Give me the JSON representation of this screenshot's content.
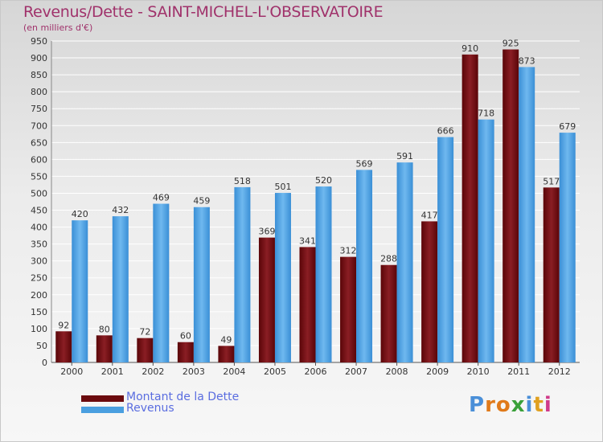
{
  "header": {
    "title": "Revenus/Dette - SAINT-MICHEL-L'OBSERVATOIRE",
    "subtitle": "(en milliers d'€)"
  },
  "legend": [
    {
      "label": "Montant de la Dette",
      "color": "#6b0a0e"
    },
    {
      "label": "Revenus",
      "color": "#4a9fe0"
    }
  ],
  "logo": {
    "text": "Proxiti",
    "letter_colors": [
      "#4a8fd8",
      "#e07a1a",
      "#e07a1a",
      "#3aa03a",
      "#4a8fd8",
      "#e0a020",
      "#d03a8a"
    ]
  },
  "chart_data": {
    "type": "bar",
    "title": "Revenus/Dette - SAINT-MICHEL-L'OBSERVATOIRE",
    "subtitle": "(en milliers d'€)",
    "categories": [
      "2000",
      "2001",
      "2002",
      "2003",
      "2004",
      "2005",
      "2006",
      "2007",
      "2008",
      "2009",
      "2010",
      "2011",
      "2012"
    ],
    "series": [
      {
        "name": "Montant de la Dette",
        "color": "#6b0a0e",
        "values": [
          92,
          80,
          72,
          60,
          49,
          369,
          341,
          312,
          288,
          417,
          910,
          925,
          517
        ]
      },
      {
        "name": "Revenus",
        "color": "#4a9fe0",
        "values": [
          420,
          432,
          469,
          459,
          518,
          501,
          520,
          569,
          591,
          666,
          718,
          873,
          679
        ]
      }
    ],
    "ylim": [
      0,
      950
    ],
    "yticks": [
      0,
      50,
      100,
      150,
      200,
      250,
      300,
      350,
      400,
      450,
      500,
      550,
      600,
      650,
      700,
      750,
      800,
      850,
      900,
      950
    ],
    "grid": true,
    "legend_position": "bottom-left"
  }
}
